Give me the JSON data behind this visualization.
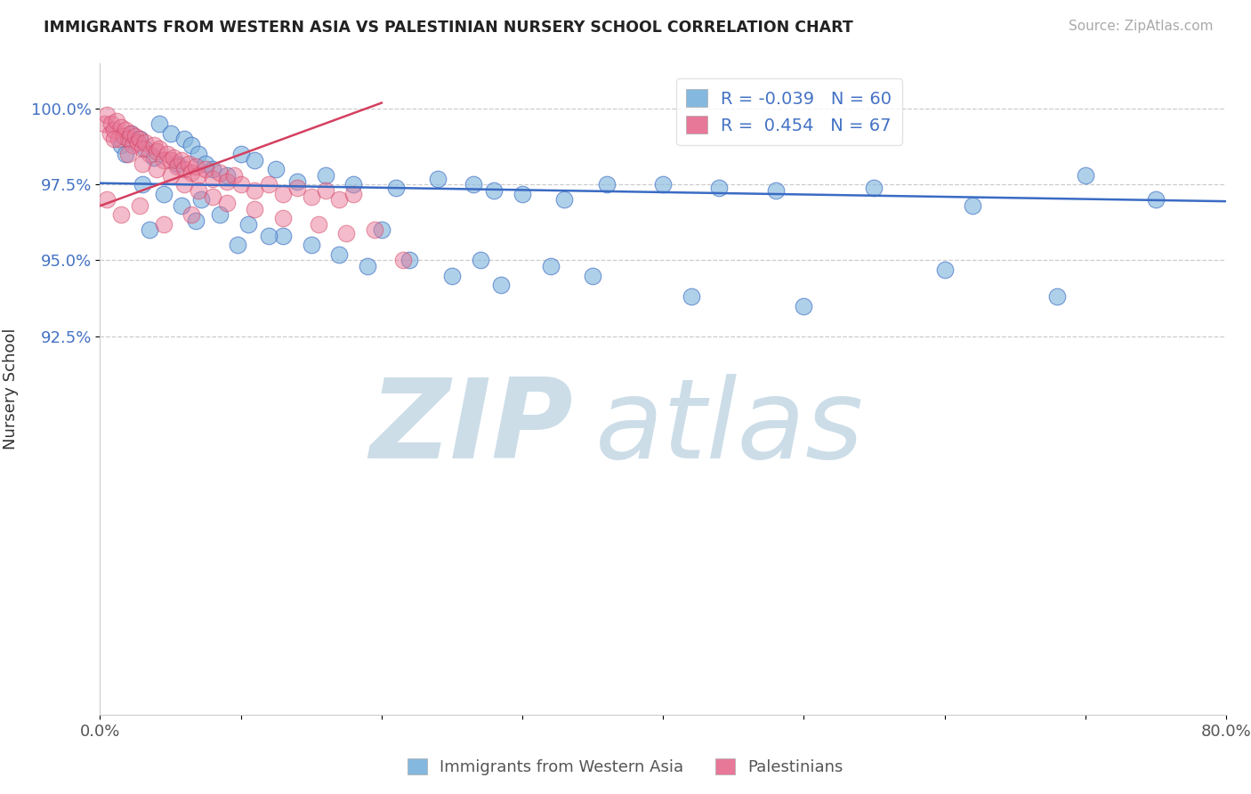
{
  "title": "IMMIGRANTS FROM WESTERN ASIA VS PALESTINIAN NURSERY SCHOOL CORRELATION CHART",
  "source": "Source: ZipAtlas.com",
  "ylabel": "Nursery School",
  "legend_label1": "Immigrants from Western Asia",
  "legend_label2": "Palestinians",
  "r1": -0.039,
  "n1": 60,
  "r2": 0.454,
  "n2": 67,
  "xlim": [
    0.0,
    80.0
  ],
  "ylim": [
    80.0,
    101.5
  ],
  "yticks": [
    92.5,
    95.0,
    97.5,
    100.0
  ],
  "ytick_labels": [
    "92.5%",
    "95.0%",
    "97.5%",
    "100.0%"
  ],
  "xticks": [
    0.0,
    10.0,
    20.0,
    30.0,
    40.0,
    50.0,
    60.0,
    70.0,
    80.0
  ],
  "xtick_labels": [
    "0.0%",
    "",
    "",
    "",
    "",
    "",
    "",
    "",
    "80.0%"
  ],
  "color_blue": "#85b8de",
  "color_pink": "#e87898",
  "color_blue_line": "#3a6bc4",
  "color_pink_line": "#d44060",
  "watermark_color": "#ccdde8",
  "blue_trend_x0": 0.0,
  "blue_trend_y0": 97.55,
  "blue_trend_x1": 80.0,
  "blue_trend_y1": 96.95,
  "pink_trend_x0": 0.0,
  "pink_trend_y0": 96.8,
  "pink_trend_x1": 20.0,
  "pink_trend_y1": 100.2,
  "blue_x": [
    1.5,
    1.8,
    2.2,
    2.8,
    3.2,
    3.8,
    4.2,
    5.0,
    5.5,
    6.0,
    6.5,
    7.0,
    7.5,
    8.0,
    9.0,
    10.0,
    11.0,
    12.5,
    14.0,
    16.0,
    18.0,
    21.0,
    24.0,
    26.5,
    28.0,
    30.0,
    33.0,
    36.0,
    40.0,
    44.0,
    48.0,
    55.0,
    62.0,
    70.0,
    75.0,
    4.5,
    5.8,
    7.2,
    8.5,
    10.5,
    13.0,
    15.0,
    17.0,
    19.0,
    22.0,
    25.0,
    28.5,
    32.0,
    3.5,
    6.8,
    9.8,
    12.0,
    20.0,
    27.0,
    35.0,
    42.0,
    50.0,
    60.0,
    68.0,
    3.0
  ],
  "blue_y": [
    98.8,
    98.5,
    99.2,
    99.0,
    98.7,
    98.4,
    99.5,
    99.2,
    98.2,
    99.0,
    98.8,
    98.5,
    98.2,
    98.0,
    97.8,
    98.5,
    98.3,
    98.0,
    97.6,
    97.8,
    97.5,
    97.4,
    97.7,
    97.5,
    97.3,
    97.2,
    97.0,
    97.5,
    97.5,
    97.4,
    97.3,
    97.4,
    96.8,
    97.8,
    97.0,
    97.2,
    96.8,
    97.0,
    96.5,
    96.2,
    95.8,
    95.5,
    95.2,
    94.8,
    95.0,
    94.5,
    94.2,
    94.8,
    96.0,
    96.3,
    95.5,
    95.8,
    96.0,
    95.0,
    94.5,
    93.8,
    93.5,
    94.7,
    93.8,
    97.5
  ],
  "pink_x": [
    0.3,
    0.5,
    0.7,
    0.8,
    1.0,
    1.2,
    1.3,
    1.5,
    1.7,
    1.8,
    2.0,
    2.2,
    2.3,
    2.5,
    2.7,
    2.8,
    3.0,
    3.2,
    3.5,
    3.8,
    4.0,
    4.2,
    4.5,
    4.8,
    5.0,
    5.2,
    5.5,
    5.8,
    6.0,
    6.3,
    6.5,
    6.8,
    7.0,
    7.5,
    8.0,
    8.5,
    9.0,
    9.5,
    10.0,
    11.0,
    12.0,
    13.0,
    14.0,
    15.0,
    16.0,
    17.0,
    18.0,
    1.0,
    2.0,
    3.0,
    4.0,
    5.0,
    6.0,
    7.0,
    8.0,
    9.0,
    11.0,
    13.0,
    15.5,
    17.5,
    19.5,
    21.5,
    0.5,
    1.5,
    2.8,
    4.5,
    6.5
  ],
  "pink_y": [
    99.5,
    99.8,
    99.2,
    99.5,
    99.3,
    99.6,
    99.0,
    99.4,
    99.1,
    99.3,
    99.0,
    99.2,
    98.8,
    99.1,
    98.9,
    99.0,
    98.7,
    98.9,
    98.5,
    98.8,
    98.6,
    98.7,
    98.3,
    98.5,
    98.3,
    98.4,
    98.1,
    98.3,
    98.0,
    98.2,
    97.9,
    98.1,
    97.8,
    98.0,
    97.7,
    97.9,
    97.6,
    97.8,
    97.5,
    97.3,
    97.5,
    97.2,
    97.4,
    97.1,
    97.3,
    97.0,
    97.2,
    99.0,
    98.5,
    98.2,
    98.0,
    97.8,
    97.5,
    97.3,
    97.1,
    96.9,
    96.7,
    96.4,
    96.2,
    95.9,
    96.0,
    95.0,
    97.0,
    96.5,
    96.8,
    96.2,
    96.5
  ]
}
